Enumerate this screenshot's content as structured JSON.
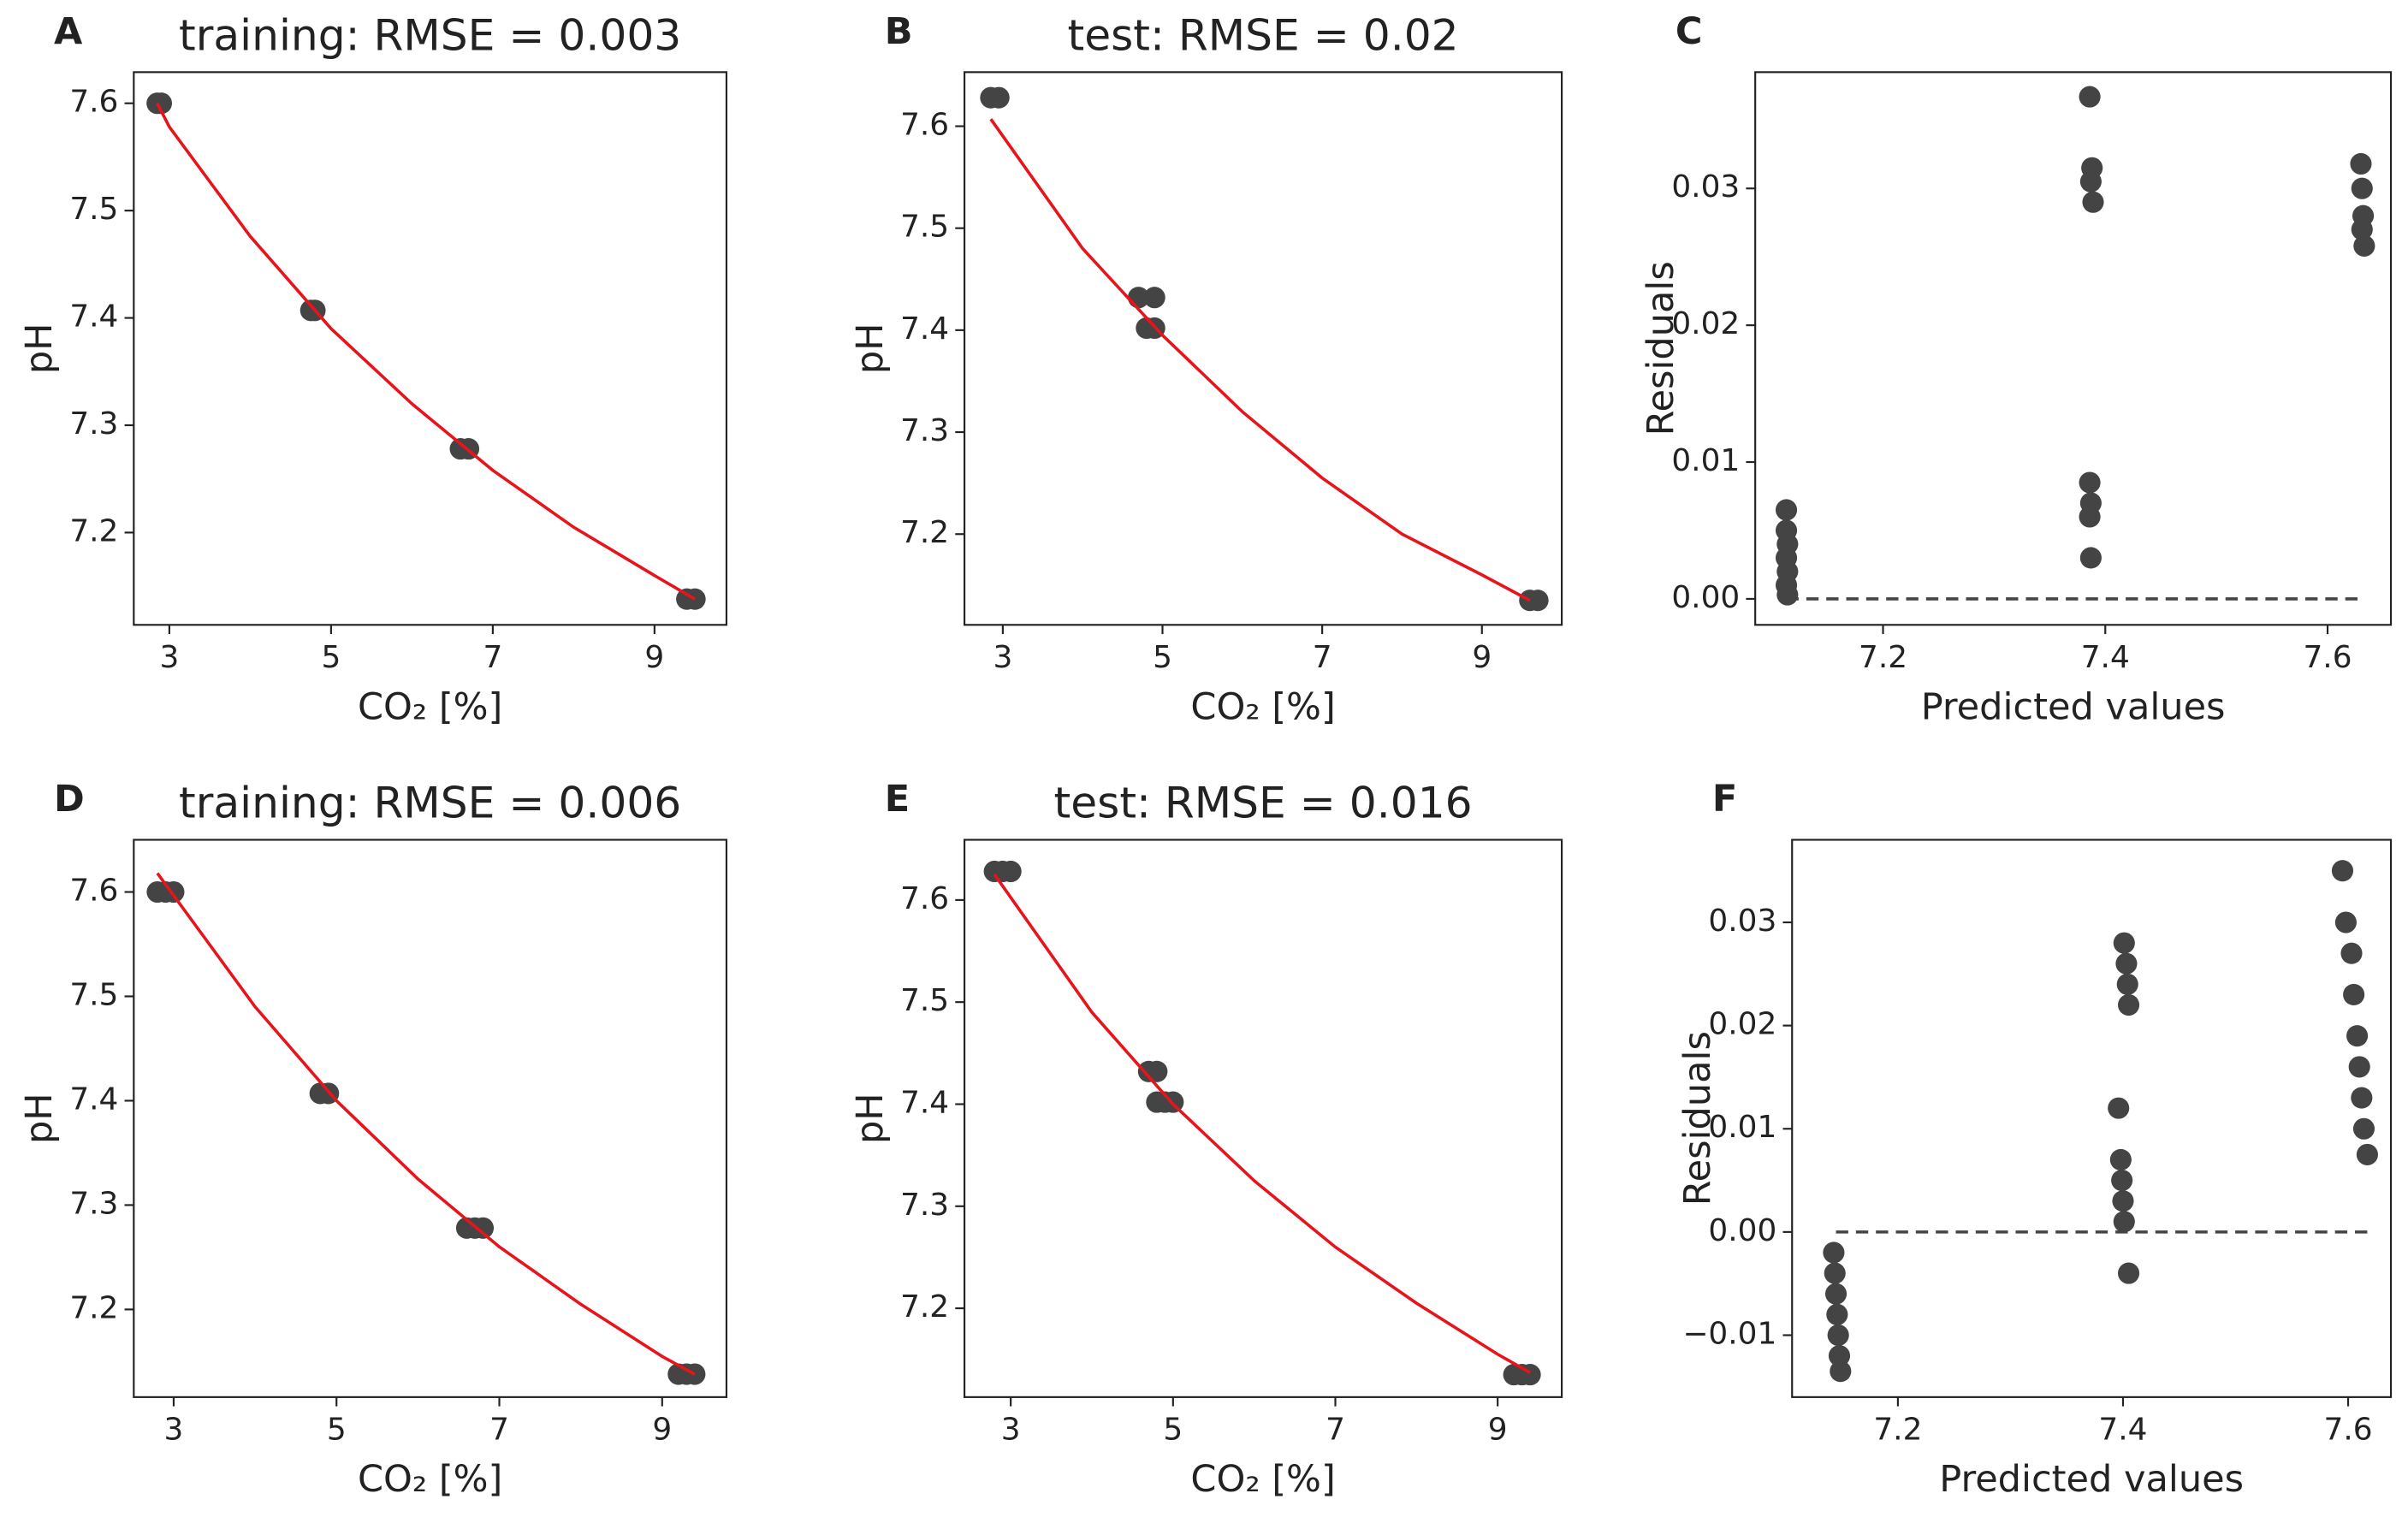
{
  "chart_data": [
    {
      "type": "scatter",
      "panel": "A",
      "title": "training: RMSE = 0.003",
      "xlabel": "CO₂ [%]",
      "ylabel": "pH",
      "xlim": [
        2.56,
        9.89
      ],
      "ylim": [
        7.114,
        7.629
      ],
      "xticks": [
        3,
        5,
        7,
        9
      ],
      "yticks": [
        7.2,
        7.3,
        7.4,
        7.5,
        7.6
      ],
      "series": [
        {
          "type": "scatter",
          "color": "#444444",
          "x": [
            2.85,
            2.9,
            4.75,
            4.8,
            6.6,
            6.7,
            9.4,
            9.5
          ],
          "values": [
            7.6,
            7.6,
            7.407,
            7.407,
            7.278,
            7.278,
            7.138,
            7.138
          ]
        },
        {
          "type": "line",
          "color": "#e8141c",
          "x": [
            2.85,
            3,
            4,
            5,
            6,
            7,
            8,
            9,
            9.5
          ],
          "values": [
            7.6,
            7.578,
            7.476,
            7.39,
            7.32,
            7.258,
            7.205,
            7.16,
            7.138
          ]
        }
      ]
    },
    {
      "type": "scatter",
      "panel": "B",
      "title": "test: RMSE = 0.02",
      "xlabel": "CO₂ [%]",
      "ylabel": "pH",
      "xlim": [
        2.52,
        10.0
      ],
      "ylim": [
        7.111,
        7.653
      ],
      "xticks": [
        3,
        5,
        7,
        9
      ],
      "yticks": [
        7.2,
        7.3,
        7.4,
        7.5,
        7.6
      ],
      "series": [
        {
          "type": "scatter",
          "color": "#444444",
          "x": [
            2.85,
            2.95,
            4.7,
            4.9,
            4.8,
            4.9,
            9.6,
            9.7
          ],
          "values": [
            7.628,
            7.628,
            7.432,
            7.432,
            7.402,
            7.402,
            7.135,
            7.135
          ]
        },
        {
          "type": "line",
          "color": "#e8141c",
          "x": [
            2.85,
            4,
            5,
            6,
            7,
            8,
            9,
            9.6
          ],
          "values": [
            7.607,
            7.48,
            7.395,
            7.32,
            7.255,
            7.2,
            7.16,
            7.135
          ]
        }
      ]
    },
    {
      "type": "scatter",
      "panel": "C",
      "xlabel": "Predicted values",
      "ylabel": "Residuals",
      "xlim": [
        7.085,
        7.657
      ],
      "ylim": [
        -0.0019,
        0.0385
      ],
      "xticks": [
        7.2,
        7.4,
        7.6
      ],
      "yticks": [
        {
          "value": 0,
          "label": "0.00"
        },
        {
          "value": 0.01,
          "label": "0.01"
        },
        {
          "value": 0.02,
          "label": "0.02"
        },
        {
          "value": 0.03,
          "label": "0.03"
        }
      ],
      "series": [
        {
          "type": "scatter",
          "color": "#444444",
          "x": [
            7.113,
            7.113,
            7.114,
            7.113,
            7.114,
            7.113,
            7.114,
            7.386,
            7.388,
            7.387,
            7.389,
            7.386,
            7.387,
            7.386,
            7.387,
            7.63,
            7.631,
            7.632,
            7.631,
            7.633
          ],
          "values": [
            0.0065,
            0.005,
            0.004,
            0.003,
            0.002,
            0.001,
            0.0003,
            0.0367,
            0.0315,
            0.0305,
            0.029,
            0.0085,
            0.007,
            0.006,
            0.003,
            0.0318,
            0.03,
            0.028,
            0.027,
            0.0258
          ]
        },
        {
          "type": "line",
          "color": "#444444",
          "dashed": true,
          "x": [
            7.113,
            7.63
          ],
          "values": [
            0,
            0
          ]
        }
      ]
    },
    {
      "type": "scatter",
      "panel": "D",
      "title": "training: RMSE = 0.006",
      "xlabel": "CO₂ [%]",
      "ylabel": "pH",
      "xlim": [
        2.51,
        9.79
      ],
      "ylim": [
        7.116,
        7.65
      ],
      "xticks": [
        3,
        5,
        7,
        9
      ],
      "yticks": [
        7.2,
        7.3,
        7.4,
        7.5,
        7.6
      ],
      "series": [
        {
          "type": "scatter",
          "color": "#444444",
          "x": [
            2.8,
            2.9,
            3.0,
            4.8,
            4.9,
            6.6,
            6.7,
            6.8,
            9.2,
            9.3,
            9.4
          ],
          "values": [
            7.6,
            7.6,
            7.6,
            7.407,
            7.407,
            7.278,
            7.278,
            7.278,
            7.138,
            7.138,
            7.138
          ]
        },
        {
          "type": "line",
          "color": "#e8141c",
          "x": [
            2.8,
            4,
            5,
            6,
            7,
            8,
            9,
            9.4
          ],
          "values": [
            7.618,
            7.49,
            7.4,
            7.325,
            7.26,
            7.205,
            7.155,
            7.138
          ]
        }
      ]
    },
    {
      "type": "scatter",
      "panel": "E",
      "title": "test: RMSE = 0.016",
      "xlabel": "CO₂ [%]",
      "ylabel": "pH",
      "xlim": [
        2.43,
        9.79
      ],
      "ylim": [
        7.113,
        7.659
      ],
      "xticks": [
        3,
        5,
        7,
        9
      ],
      "yticks": [
        7.2,
        7.3,
        7.4,
        7.5,
        7.6
      ],
      "series": [
        {
          "type": "scatter",
          "color": "#444444",
          "x": [
            2.8,
            2.9,
            3.0,
            4.7,
            4.8,
            4.8,
            4.9,
            5.0,
            9.2,
            9.3,
            9.4
          ],
          "values": [
            7.628,
            7.628,
            7.628,
            7.432,
            7.432,
            7.402,
            7.402,
            7.402,
            7.135,
            7.135,
            7.135
          ]
        },
        {
          "type": "line",
          "color": "#e8141c",
          "x": [
            2.8,
            4,
            5,
            6,
            7,
            8,
            9,
            9.4
          ],
          "values": [
            7.625,
            7.49,
            7.4,
            7.325,
            7.26,
            7.205,
            7.155,
            7.137
          ]
        }
      ]
    },
    {
      "type": "scatter",
      "panel": "F",
      "xlabel": "Predicted values",
      "ylabel": "Residuals",
      "xlim": [
        7.106,
        7.638
      ],
      "ylim": [
        -0.016,
        0.038
      ],
      "xticks": [
        7.2,
        7.4,
        7.6
      ],
      "yticks": [
        {
          "value": -0.01,
          "label": "−0.01"
        },
        {
          "value": 0,
          "label": "0.00"
        },
        {
          "value": 0.01,
          "label": "0.01"
        },
        {
          "value": 0.02,
          "label": "0.02"
        },
        {
          "value": 0.03,
          "label": "0.03"
        }
      ],
      "series": [
        {
          "type": "scatter",
          "color": "#444444",
          "x": [
            7.143,
            7.144,
            7.145,
            7.146,
            7.147,
            7.148,
            7.149,
            7.401,
            7.403,
            7.404,
            7.405,
            7.396,
            7.398,
            7.399,
            7.4,
            7.401,
            7.405,
            7.595,
            7.598,
            7.603,
            7.605,
            7.608,
            7.61,
            7.612,
            7.614,
            7.617
          ],
          "values": [
            -0.002,
            -0.004,
            -0.006,
            -0.008,
            -0.01,
            -0.012,
            -0.0135,
            0.028,
            0.026,
            0.024,
            0.022,
            0.012,
            0.007,
            0.005,
            0.003,
            0.001,
            -0.004,
            0.035,
            0.03,
            0.027,
            0.023,
            0.019,
            0.016,
            0.013,
            0.01,
            0.0075
          ]
        },
        {
          "type": "line",
          "color": "#444444",
          "dashed": true,
          "x": [
            7.145,
            7.62
          ],
          "values": [
            0,
            0
          ]
        }
      ]
    }
  ]
}
